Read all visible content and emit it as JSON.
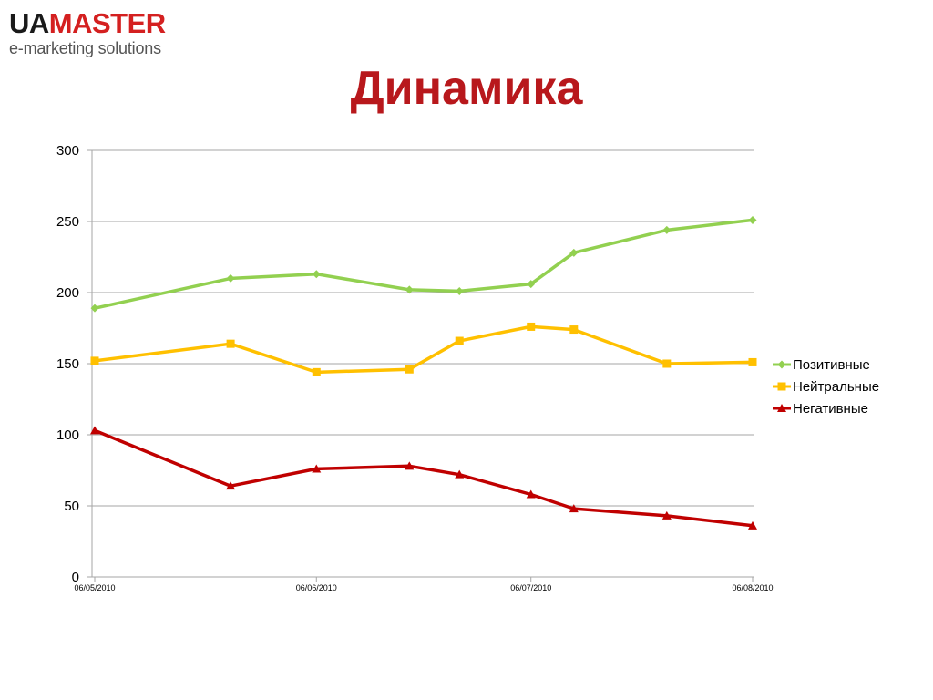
{
  "logo": {
    "part1": "UA",
    "part2": "MASTER",
    "tagline": "e-marketing  solutions"
  },
  "page": {
    "title": "Динамика"
  },
  "colors": {
    "title": "#b8181c",
    "positive": "#92d050",
    "neutral": "#ffc000",
    "negative": "#c00000",
    "grid": "#a6a6a6"
  },
  "chart_data": {
    "type": "line",
    "title": "",
    "xlabel": "",
    "ylabel": "",
    "ylim": [
      0,
      300
    ],
    "yticks": [
      "0",
      "50",
      "100",
      "150",
      "200",
      "250",
      "300"
    ],
    "xlim": [
      "2010-05-06",
      "2010-08-06"
    ],
    "xticks": [
      {
        "date": "2010-05-06",
        "label": "06/05/2010"
      },
      {
        "date": "2010-06-06",
        "label": "06/06/2010"
      },
      {
        "date": "2010-07-06",
        "label": "06/07/2010"
      },
      {
        "date": "2010-08-06",
        "label": "06/08/2010"
      }
    ],
    "grid": true,
    "legend_position": "right",
    "x": [
      "2010-05-06",
      "2010-05-25",
      "2010-06-06",
      "2010-06-19",
      "2010-06-26",
      "2010-07-06",
      "2010-07-12",
      "2010-07-25",
      "2010-08-06"
    ],
    "series": [
      {
        "name": "Позитивные",
        "marker": "diamond",
        "color": "#92d050",
        "values": [
          189,
          210,
          213,
          202,
          201,
          206,
          228,
          244,
          251
        ]
      },
      {
        "name": "Нейтральные",
        "marker": "square",
        "color": "#ffc000",
        "values": [
          152,
          164,
          144,
          146,
          166,
          176,
          174,
          150,
          151
        ]
      },
      {
        "name": "Негативные",
        "marker": "triangle",
        "color": "#c00000",
        "values": [
          103,
          64,
          76,
          78,
          72,
          58,
          48,
          43,
          36
        ]
      }
    ]
  }
}
